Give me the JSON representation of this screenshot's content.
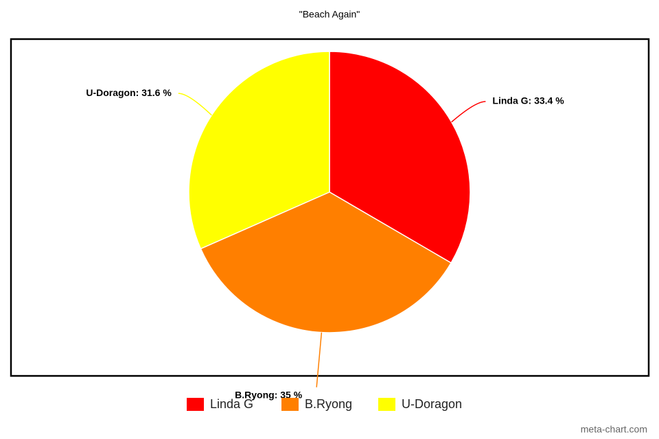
{
  "chart_data": {
    "type": "pie",
    "title": "\"Beach Again\"",
    "categories": [
      "Linda G",
      "B.Ryong",
      "U-Doragon"
    ],
    "values": [
      33.4,
      35,
      31.6
    ],
    "value_labels": [
      "Linda G: 33.4 %",
      "B.Ryong: 35 %",
      "U-Doragon: 31.6 %"
    ],
    "colors": [
      "#ff0000",
      "#ff7f00",
      "#ffff00"
    ],
    "legend": "bottom"
  },
  "watermark": "meta-chart.com"
}
